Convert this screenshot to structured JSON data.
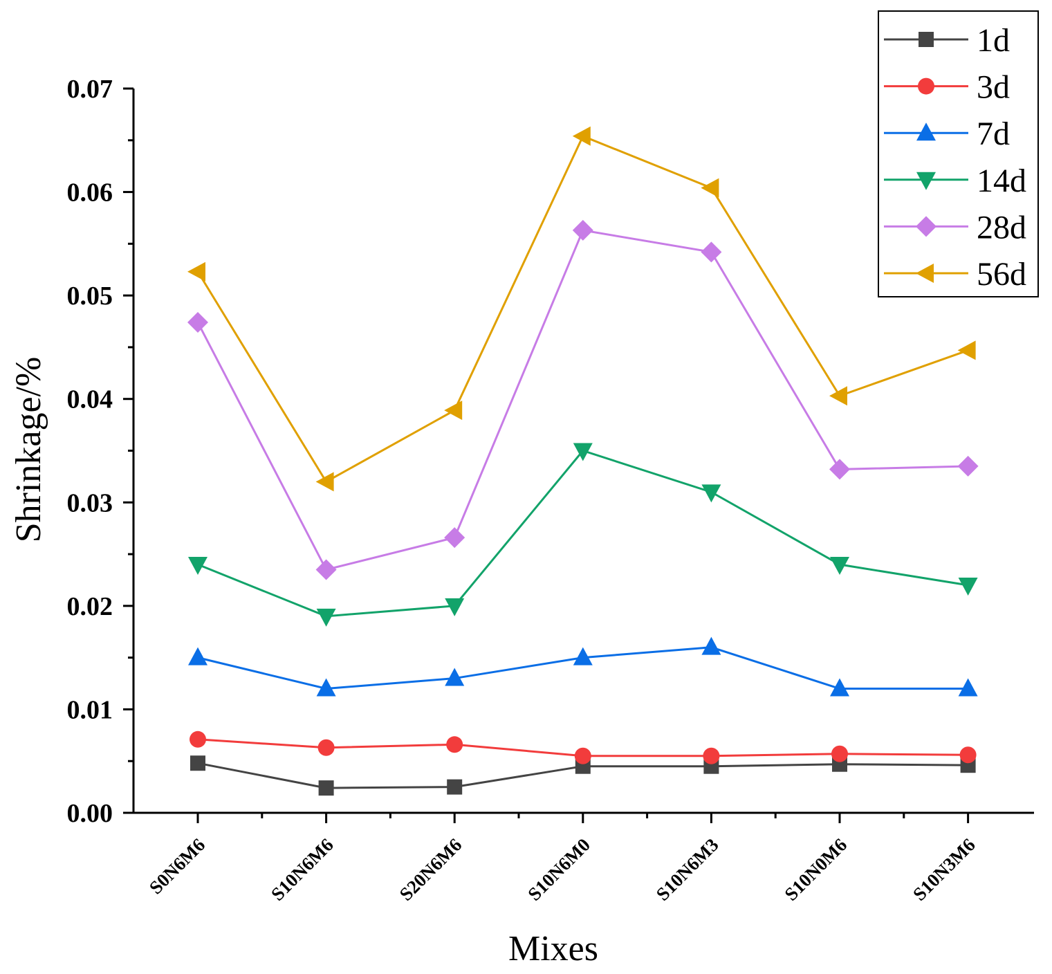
{
  "chart_data": {
    "type": "line",
    "title": "",
    "xlabel": "Mixes",
    "ylabel": "Shrinkage/%",
    "ylim": [
      0,
      0.07
    ],
    "yticks": [
      "0.00",
      "0.01",
      "0.02",
      "0.03",
      "0.04",
      "0.05",
      "0.06",
      "0.07"
    ],
    "categories": [
      "S0N6M6",
      "S10N6M6",
      "S20N6M6",
      "S10N6M0",
      "S10N6M3",
      "S10N0M6",
      "S10N3M6"
    ],
    "legend_position": "top-right",
    "series": [
      {
        "name": "1d",
        "color": "#444444",
        "marker": "square",
        "values": [
          0.0048,
          0.0024,
          0.0025,
          0.0045,
          0.0045,
          0.0047,
          0.0046
        ]
      },
      {
        "name": "3d",
        "color": "#f23c3c",
        "marker": "circle",
        "values": [
          0.0071,
          0.0063,
          0.0066,
          0.0055,
          0.0055,
          0.0057,
          0.0056
        ]
      },
      {
        "name": "7d",
        "color": "#0a6ee6",
        "marker": "triangle-up",
        "values": [
          0.015,
          0.012,
          0.013,
          0.015,
          0.016,
          0.012,
          0.012
        ]
      },
      {
        "name": "14d",
        "color": "#12a36a",
        "marker": "triangle-down",
        "values": [
          0.024,
          0.019,
          0.02,
          0.035,
          0.031,
          0.024,
          0.022
        ]
      },
      {
        "name": "28d",
        "color": "#c77ce6",
        "marker": "diamond",
        "values": [
          0.0474,
          0.0235,
          0.0266,
          0.0563,
          0.0542,
          0.0332,
          0.0335
        ]
      },
      {
        "name": "56d",
        "color": "#e0a000",
        "marker": "triangle-left",
        "values": [
          0.0523,
          0.032,
          0.0389,
          0.0654,
          0.0604,
          0.0403,
          0.0447
        ]
      }
    ]
  }
}
